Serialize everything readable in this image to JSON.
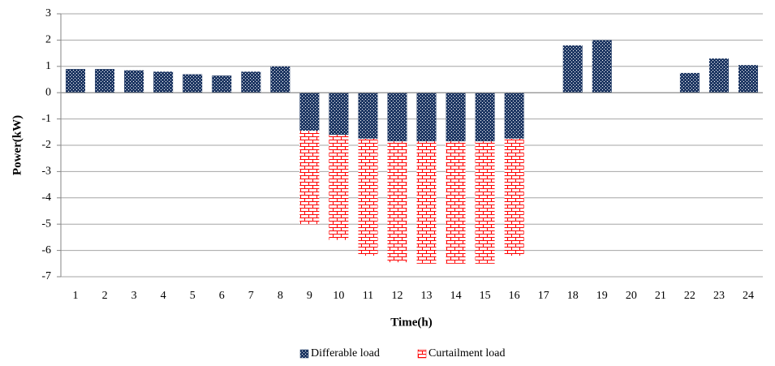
{
  "chart_data": {
    "type": "bar",
    "stacked": true,
    "x_label": "Time(h)",
    "y_label": "Power(kW)",
    "categories": [
      "1",
      "2",
      "3",
      "4",
      "5",
      "6",
      "7",
      "8",
      "9",
      "10",
      "11",
      "12",
      "13",
      "14",
      "15",
      "16",
      "17",
      "18",
      "19",
      "20",
      "21",
      "22",
      "23",
      "24"
    ],
    "series": [
      {
        "name": "Differable load",
        "color": "#1f3864",
        "values": [
          0.9,
          0.9,
          0.85,
          0.8,
          0.7,
          0.65,
          0.8,
          1.0,
          -1.45,
          -1.6,
          -1.75,
          -1.85,
          -1.85,
          -1.85,
          -1.85,
          -1.75,
          0,
          1.8,
          2.0,
          0,
          0,
          0.75,
          1.3,
          1.05
        ]
      },
      {
        "name": "Curtailment load",
        "color": "#ff0000",
        "values": [
          0,
          0,
          0,
          0,
          0,
          0,
          0,
          0,
          -3.55,
          -4.0,
          -4.45,
          -4.6,
          -4.65,
          -4.65,
          -4.65,
          -4.45,
          0,
          0,
          0,
          0,
          0,
          0,
          0,
          0
        ]
      }
    ],
    "ylim": [
      -7,
      3
    ],
    "yticks": [
      -7,
      -6,
      -5,
      -4,
      -3,
      -2,
      -1,
      0,
      1,
      2,
      3
    ],
    "grid": true,
    "legend": "bottom"
  }
}
